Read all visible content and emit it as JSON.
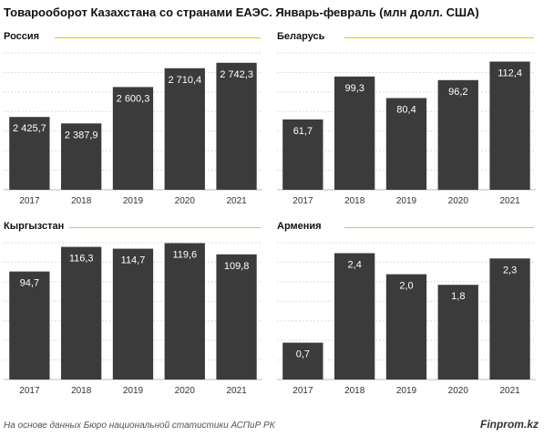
{
  "title": "Товарооборот Казахстана со странами ЕАЭС. Январь-февраль (млн долл. США)",
  "chart_data": [
    {
      "type": "bar",
      "title": "Россия",
      "categories": [
        "2017",
        "2018",
        "2019",
        "2020",
        "2021"
      ],
      "values": [
        2425.7,
        2387.9,
        2600.3,
        2710.4,
        2742.3
      ],
      "labels": [
        "2 425,7",
        "2 387,9",
        "2 600,3",
        "2 710,4",
        "2 742,3"
      ],
      "ylim": [
        2000,
        2800
      ],
      "grid": true,
      "bar_color": "#3b3b3b"
    },
    {
      "type": "bar",
      "title": "Беларусь",
      "categories": [
        "2017",
        "2018",
        "2019",
        "2020",
        "2021"
      ],
      "values": [
        61.7,
        99.3,
        80.4,
        96.2,
        112.4
      ],
      "labels": [
        "61,7",
        "99,3",
        "80,4",
        "96,2",
        "112,4"
      ],
      "ylim": [
        0,
        120
      ],
      "grid": true,
      "bar_color": "#3b3b3b"
    },
    {
      "type": "bar",
      "title": "Кыргызстан",
      "categories": [
        "2017",
        "2018",
        "2019",
        "2020",
        "2021"
      ],
      "values": [
        94.7,
        116.3,
        114.7,
        119.6,
        109.8
      ],
      "labels": [
        "94,7",
        "116,3",
        "114,7",
        "119,6",
        "109,8"
      ],
      "ylim": [
        0,
        120
      ],
      "grid": true,
      "bar_color": "#3b3b3b"
    },
    {
      "type": "bar",
      "title": "Армения",
      "categories": [
        "2017",
        "2018",
        "2019",
        "2020",
        "2021"
      ],
      "values": [
        0.7,
        2.4,
        2.0,
        1.8,
        2.3
      ],
      "labels": [
        "0,7",
        "2,4",
        "2,0",
        "1,8",
        "2,3"
      ],
      "ylim": [
        0,
        2.6
      ],
      "grid": true,
      "bar_color": "#3b3b3b"
    }
  ],
  "footer": {
    "source": "На основе данных Бюро национальной статистики АСПиР РК",
    "brand": "Finprom.kz"
  }
}
